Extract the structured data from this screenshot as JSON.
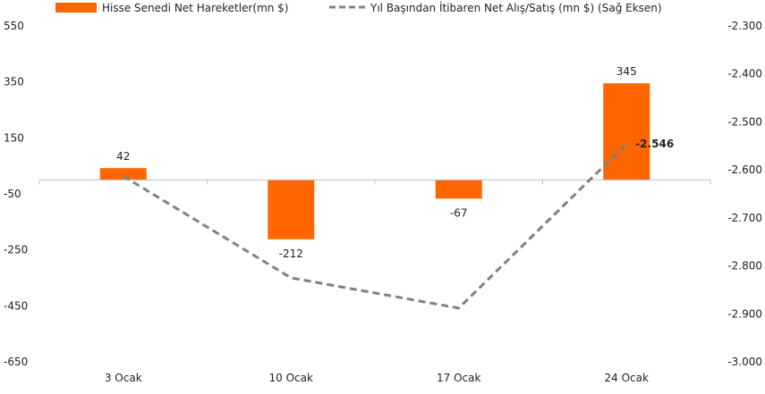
{
  "chart_data": {
    "type": "bar+line",
    "categories": [
      "3 Ocak",
      "10 Ocak",
      "17 Ocak",
      "24 Ocak"
    ],
    "series": [
      {
        "name": "Hisse Senedi Net Hareketler(mn $)",
        "kind": "bar",
        "axis": "left",
        "values": [
          42,
          -212,
          -67,
          345
        ],
        "labels": [
          "42",
          "-212",
          "-67",
          "345"
        ],
        "color": "#FF6600"
      },
      {
        "name": "Yıl Başından İtibaren Net Alış/Satış (mn $) (Sağ Eksen)",
        "kind": "line",
        "axis": "right",
        "style": "dashed",
        "values": [
          -2613,
          -2825,
          -2888,
          -2546
        ],
        "last_label": "-2.546",
        "color": "#808080"
      }
    ],
    "left_axis": {
      "min": -650,
      "max": 550,
      "ticks": [
        550,
        350,
        150,
        -50,
        -250,
        -450,
        -650
      ],
      "tick_labels": [
        "550",
        "350",
        "150",
        "-50",
        "-250",
        "-450",
        "-650"
      ]
    },
    "right_axis": {
      "min": -3000,
      "max": -2300,
      "ticks": [
        -2300,
        -2400,
        -2500,
        -2600,
        -2700,
        -2800,
        -2900,
        -3000
      ],
      "tick_labels": [
        "-2.300",
        "-2.400",
        "-2.500",
        "-2.600",
        "-2.700",
        "-2.800",
        "-2.900",
        "-3.000"
      ]
    },
    "legend_position": "top",
    "grid": false
  }
}
